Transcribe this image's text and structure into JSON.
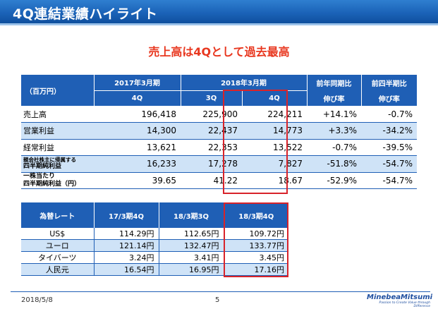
{
  "header": {
    "title": "4Q連結業績ハイライト"
  },
  "subtitle": "売上高は4Qとして過去最高",
  "results": {
    "unit_label": "（百万円）",
    "period_fy2017": "2017年3月期",
    "period_fy2018": "2018年3月期",
    "col_fy2017_4q": "4Q",
    "col_fy2018_3q": "3Q",
    "col_fy2018_4q": "4Q",
    "col_yoy_1": "前年同期比",
    "col_yoy_2": "伸び率",
    "col_qoq_1": "前四半期比",
    "col_qoq_2": "伸び率",
    "rows": [
      {
        "label": "売上高",
        "fy2017_4q": "196,418",
        "fy2018_3q": "225,900",
        "fy2018_4q": "224,211",
        "yoy": "+14.1%",
        "qoq": "-0.7%"
      },
      {
        "label": "営業利益",
        "fy2017_4q": "14,300",
        "fy2018_3q": "22,437",
        "fy2018_4q": "14,773",
        "yoy": "+3.3%",
        "qoq": "-34.2%"
      },
      {
        "label": "経常利益",
        "fy2017_4q": "13,621",
        "fy2018_3q": "22,353",
        "fy2018_4q": "13,522",
        "yoy": "-0.7%",
        "qoq": "-39.5%"
      },
      {
        "label_1": "親会社株主に帰属する",
        "label_2": "四半期純利益",
        "fy2017_4q": "16,233",
        "fy2018_3q": "17,278",
        "fy2018_4q": "7,827",
        "yoy": "-51.8%",
        "qoq": "-54.7%"
      },
      {
        "label_1": "一株当たり",
        "label_2": "四半期純利益（円）",
        "fy2017_4q": "39.65",
        "fy2018_3q": "41.22",
        "fy2018_4q": "18.67",
        "yoy": "-52.9%",
        "qoq": "-54.7%"
      }
    ]
  },
  "fx": {
    "header": "為替レート",
    "col_1": "17/3期4Q",
    "col_2": "18/3期3Q",
    "col_3": "18/3期4Q",
    "rows": [
      {
        "label": "US$",
        "v1": "114.29円",
        "v2": "112.65円",
        "v3": "109.72円"
      },
      {
        "label": "ユーロ",
        "v1": "121.14円",
        "v2": "132.47円",
        "v3": "133.77円"
      },
      {
        "label": "タイバーツ",
        "v1": "3.24円",
        "v2": "3.41円",
        "v3": "3.45円"
      },
      {
        "label": "人民元",
        "v1": "16.54円",
        "v2": "16.95円",
        "v3": "17.16円"
      }
    ]
  },
  "footer": {
    "date": "2018/5/8",
    "page": "5",
    "logo": "MinebeaMitsumi",
    "tagline": "Passion to Create Value through Difference"
  },
  "colors": {
    "brand_blue": "#1f5fb5",
    "row_tint": "#cfe3f7",
    "accent_red": "#e8371f",
    "highlight_box": "#d8232a"
  }
}
